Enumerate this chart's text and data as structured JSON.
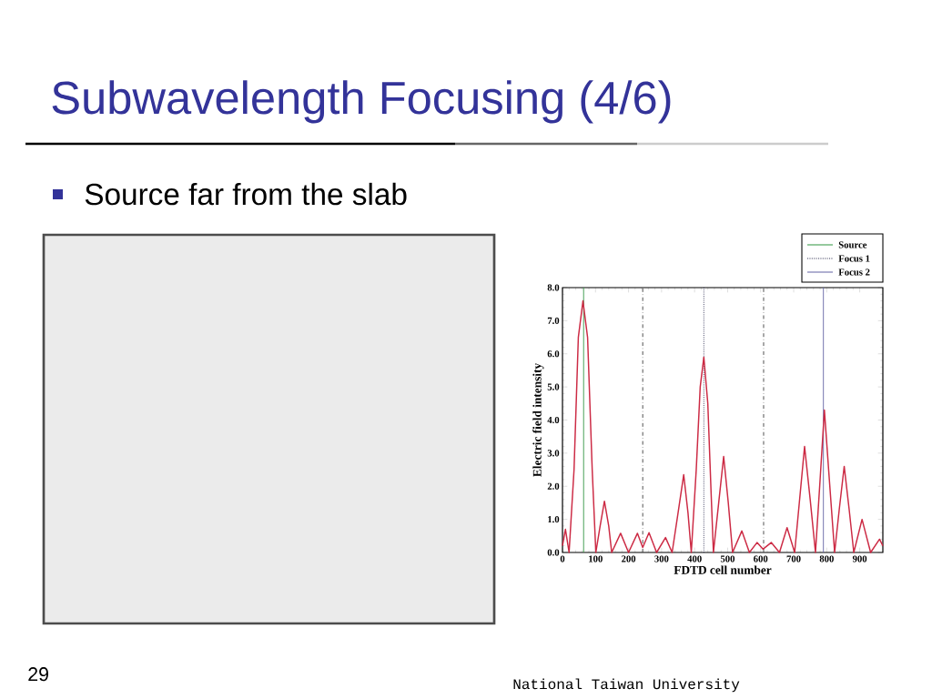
{
  "chart_data": {
    "type": "line",
    "title": "Subwavelength Focusing (4/6)",
    "subtitle": "Source far from the slab",
    "xlabel": "FDTD cell number",
    "ylabel": "Electric field intensity",
    "x": [
      0,
      9,
      20,
      35,
      48,
      62,
      76,
      90,
      101,
      114,
      127,
      140,
      149,
      176,
      200,
      227,
      243,
      262,
      285,
      312,
      332,
      350,
      367,
      380,
      390,
      405,
      417,
      428,
      440,
      450,
      457,
      473,
      488,
      502,
      515,
      543,
      566,
      589,
      607,
      632,
      657,
      680,
      703,
      718,
      733,
      750,
      766,
      780,
      793,
      808,
      824,
      838,
      853,
      868,
      882,
      907,
      933,
      960,
      970
    ],
    "values": [
      0.2,
      0.7,
      0,
      2.5,
      6.5,
      7.6,
      6.5,
      2.5,
      0,
      0.8,
      1.55,
      0.8,
      0,
      0.58,
      0,
      0.58,
      0.15,
      0.6,
      0,
      0.45,
      0,
      1.2,
      2.35,
      1.2,
      0,
      2.5,
      5.0,
      5.9,
      4.5,
      1.8,
      0,
      1.5,
      2.9,
      1.5,
      0,
      0.65,
      0,
      0.3,
      0.1,
      0.3,
      0,
      0.75,
      0,
      1.6,
      3.2,
      1.6,
      0,
      2.2,
      4.3,
      2.2,
      0,
      1.3,
      2.6,
      1.3,
      0,
      1.0,
      0,
      0.4,
      0.2
    ],
    "color": "#cc2a44",
    "marker": "none",
    "line_style": "solid",
    "grid": false,
    "legend": "top right",
    "xlim": [
      0,
      970
    ],
    "ylim": [
      0,
      8
    ],
    "xticks": [
      0,
      100,
      200,
      300,
      400,
      500,
      600,
      700,
      800,
      900
    ],
    "yticks": [
      {
        "value": 0,
        "label": "0.0"
      },
      {
        "value": 1,
        "label": "1.0"
      },
      {
        "value": 2,
        "label": "2.0"
      },
      {
        "value": 3,
        "label": "3.0"
      },
      {
        "value": 4,
        "label": "4.0"
      },
      {
        "value": 5,
        "label": "5.0"
      },
      {
        "value": 6,
        "label": "6.0"
      },
      {
        "value": 7,
        "label": "7.0"
      },
      {
        "value": 8,
        "label": "8.0"
      }
    ],
    "ref_lines": [
      {
        "axis": "x",
        "value": 64,
        "label": "Source",
        "color": "#3a9a4a",
        "line_style": "solid"
      },
      {
        "axis": "x",
        "value": 428,
        "label": "Focus 1",
        "color": "#333355",
        "line_style": "dotted"
      },
      {
        "axis": "x",
        "value": 790,
        "label": "Focus 2",
        "color": "#6a6aa8",
        "line_style": "solid"
      },
      {
        "axis": "x",
        "value": 243,
        "color": "#444444",
        "line_style": "dashdot"
      },
      {
        "axis": "x",
        "value": 609,
        "color": "#444444",
        "line_style": "dashdot"
      }
    ],
    "annotations": [
      "29",
      "National Taiwan University"
    ]
  }
}
